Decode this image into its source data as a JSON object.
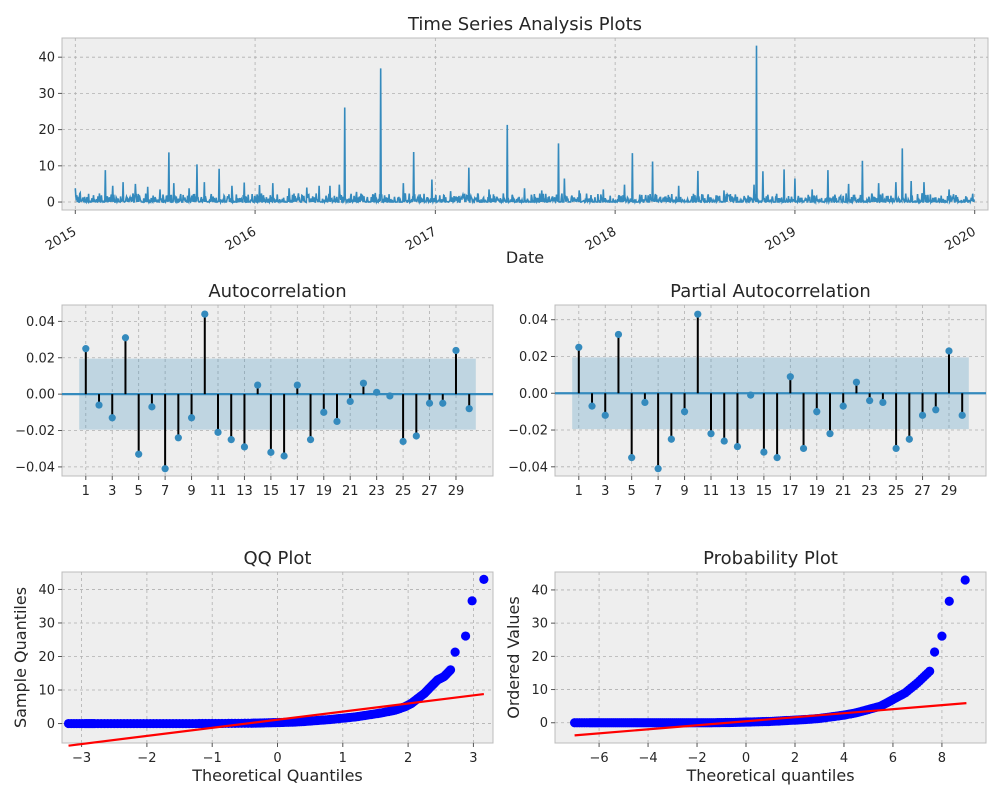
{
  "chart_data": [
    {
      "id": "ts",
      "type": "line",
      "title": "Time Series Analysis Plots",
      "xlabel": "Date",
      "ylabel": "",
      "xlim": [
        "2014-12-05",
        "2020-01-28"
      ],
      "ylim": [
        -2.2,
        45.3
      ],
      "yticks": [
        0,
        10,
        20,
        30,
        40
      ],
      "xticks": [
        {
          "label": "2015",
          "date": "2015-01-01"
        },
        {
          "label": "2016",
          "date": "2016-01-01"
        },
        {
          "label": "2017",
          "date": "2017-01-01"
        },
        {
          "label": "2018",
          "date": "2018-01-01"
        },
        {
          "label": "2019",
          "date": "2019-01-01"
        },
        {
          "label": "2020",
          "date": "2020-01-01"
        }
      ],
      "color": "#348abd",
      "start_date": "2015-01-01",
      "end_date": "2019-12-31",
      "spikes": [
        [
          "2015-01-01",
          3.8
        ],
        [
          "2015-01-11",
          2.5
        ],
        [
          "2015-03-03",
          8.8
        ],
        [
          "2015-03-18",
          4.5
        ],
        [
          "2015-04-08",
          5.5
        ],
        [
          "2015-05-03",
          5.0
        ],
        [
          "2015-05-28",
          4.2
        ],
        [
          "2015-06-22",
          3.5
        ],
        [
          "2015-07-10",
          13.7
        ],
        [
          "2015-07-20",
          5.2
        ],
        [
          "2015-08-20",
          3.8
        ],
        [
          "2015-09-05",
          10.4
        ],
        [
          "2015-09-20",
          5.5
        ],
        [
          "2015-10-20",
          9.2
        ],
        [
          "2015-11-15",
          4.5
        ],
        [
          "2015-12-10",
          5.4
        ],
        [
          "2016-01-10",
          4.7
        ],
        [
          "2016-02-06",
          5.2
        ],
        [
          "2016-03-10",
          3.8
        ],
        [
          "2016-04-15",
          4.0
        ],
        [
          "2016-05-10",
          4.5
        ],
        [
          "2016-06-01",
          4.5
        ],
        [
          "2016-06-20",
          4.8
        ],
        [
          "2016-07-01",
          26.1
        ],
        [
          "2016-07-25",
          2.8
        ],
        [
          "2016-09-01",
          2.5
        ],
        [
          "2016-09-12",
          36.9
        ],
        [
          "2016-10-28",
          5.2
        ],
        [
          "2016-11-18",
          13.8
        ],
        [
          "2016-12-25",
          6.2
        ],
        [
          "2017-02-01",
          3.0
        ],
        [
          "2017-03-10",
          9.5
        ],
        [
          "2017-04-20",
          3.5
        ],
        [
          "2017-05-27",
          21.3
        ],
        [
          "2017-07-01",
          3.8
        ],
        [
          "2017-08-05",
          3.2
        ],
        [
          "2017-09-08",
          16.2
        ],
        [
          "2017-09-20",
          6.5
        ],
        [
          "2017-10-20",
          3.2
        ],
        [
          "2017-12-08",
          3.5
        ],
        [
          "2018-01-20",
          4.8
        ],
        [
          "2018-02-05",
          13.5
        ],
        [
          "2018-03-18",
          11.2
        ],
        [
          "2018-05-10",
          4.5
        ],
        [
          "2018-06-18",
          8.6
        ],
        [
          "2018-08-10",
          3.2
        ],
        [
          "2018-10-10",
          4.8
        ],
        [
          "2018-10-15",
          43.2
        ],
        [
          "2018-10-28",
          8.5
        ],
        [
          "2018-12-10",
          9.0
        ],
        [
          "2019-01-01",
          6.5
        ],
        [
          "2019-02-05",
          3.5
        ],
        [
          "2019-03-09",
          8.8
        ],
        [
          "2019-04-20",
          5.0
        ],
        [
          "2019-05-18",
          11.4
        ],
        [
          "2019-06-20",
          5.2
        ],
        [
          "2019-07-25",
          5.5
        ],
        [
          "2019-08-07",
          14.8
        ],
        [
          "2019-08-25",
          5.8
        ],
        [
          "2019-09-20",
          5.5
        ],
        [
          "2019-11-10",
          3.5
        ],
        [
          "2019-12-28",
          2.3
        ]
      ]
    },
    {
      "id": "acf",
      "type": "stem",
      "title": "Autocorrelation",
      "xlabel": "",
      "ylabel": "",
      "xlim": [
        -0.8,
        31.8
      ],
      "ylim": [
        -0.045,
        0.049
      ],
      "yticks": [
        -0.04,
        -0.02,
        0.0,
        0.02,
        0.04
      ],
      "ytick_labels": [
        "−0.04",
        "−0.02",
        "0.00",
        "0.02",
        "0.04"
      ],
      "xticks": [
        1,
        3,
        5,
        7,
        9,
        11,
        13,
        15,
        17,
        19,
        21,
        23,
        25,
        27,
        29
      ],
      "confidence_band": 0.0195,
      "lags": [
        0,
        1,
        2,
        3,
        4,
        5,
        6,
        7,
        8,
        9,
        10,
        11,
        12,
        13,
        14,
        15,
        16,
        17,
        18,
        19,
        20,
        21,
        22,
        23,
        24,
        25,
        26,
        27,
        28,
        29,
        30
      ],
      "values": [
        0.0,
        0.025,
        -0.006,
        -0.013,
        0.031,
        -0.033,
        -0.007,
        -0.041,
        -0.024,
        -0.013,
        0.044,
        -0.021,
        -0.025,
        -0.029,
        0.005,
        -0.032,
        -0.034,
        0.005,
        -0.025,
        -0.01,
        -0.015,
        -0.004,
        0.006,
        0.001,
        -0.001,
        -0.026,
        -0.023,
        -0.005,
        -0.005,
        0.024,
        -0.008
      ]
    },
    {
      "id": "pacf",
      "type": "stem",
      "title": "Partial Autocorrelation",
      "xlabel": "",
      "ylabel": "",
      "xlim": [
        -0.8,
        31.8
      ],
      "ylim": [
        -0.045,
        0.048
      ],
      "yticks": [
        -0.04,
        -0.02,
        0.0,
        0.02,
        0.04
      ],
      "ytick_labels": [
        "−0.04",
        "−0.02",
        "0.00",
        "0.02",
        "0.04"
      ],
      "xticks": [
        1,
        3,
        5,
        7,
        9,
        11,
        13,
        15,
        17,
        19,
        21,
        23,
        25,
        27,
        29
      ],
      "confidence_band": 0.0195,
      "lags": [
        0,
        1,
        2,
        3,
        4,
        5,
        6,
        7,
        8,
        9,
        10,
        11,
        12,
        13,
        14,
        15,
        16,
        17,
        18,
        19,
        20,
        21,
        22,
        23,
        24,
        25,
        26,
        27,
        28,
        29,
        30
      ],
      "values": [
        0.0,
        0.025,
        -0.007,
        -0.012,
        0.032,
        -0.035,
        -0.005,
        -0.041,
        -0.025,
        -0.01,
        0.043,
        -0.022,
        -0.026,
        -0.029,
        -0.001,
        -0.032,
        -0.035,
        0.009,
        -0.03,
        -0.01,
        -0.022,
        -0.007,
        0.006,
        -0.004,
        -0.005,
        -0.03,
        -0.025,
        -0.012,
        -0.009,
        0.023,
        -0.012
      ]
    },
    {
      "id": "qq",
      "type": "scatter",
      "title": "QQ Plot",
      "xlabel": "Theoretical Quantiles",
      "ylabel": "Sample Quantiles",
      "xlim": [
        -3.3,
        3.3
      ],
      "ylim": [
        -5.8,
        45.2
      ],
      "xticks": [
        -3,
        -2,
        -1,
        0,
        1,
        2,
        3
      ],
      "xtick_labels": [
        "−3",
        "−2",
        "−1",
        "0",
        "1",
        "2",
        "3"
      ],
      "yticks": [
        0,
        10,
        20,
        30,
        40
      ],
      "point_color": "#0000ff",
      "line_color": "#ff0000",
      "fit_line": {
        "x": [
          -3.2,
          3.16
        ],
        "y": [
          -6.6,
          8.8
        ]
      },
      "points": {
        "x": [
          -3.2,
          -2.95,
          -2.8,
          -2.5,
          -2.2,
          -1.9,
          -1.6,
          -1.3,
          -1.0,
          -0.7,
          -0.4,
          -0.2,
          0.0,
          0.2,
          0.4,
          0.6,
          0.8,
          1.0,
          1.2,
          1.4,
          1.6,
          1.8,
          1.95,
          2.05,
          2.15,
          2.25,
          2.35,
          2.45,
          2.55,
          2.65,
          2.72,
          2.88,
          2.98,
          3.16
        ],
        "y": [
          0.0,
          0.0,
          0.0,
          0.0,
          0.0,
          0.0,
          0.0,
          0.0,
          0.02,
          0.05,
          0.1,
          0.2,
          0.3,
          0.4,
          0.6,
          0.9,
          1.2,
          1.6,
          2.0,
          2.6,
          3.2,
          4.0,
          5.0,
          6.0,
          7.5,
          9.0,
          11.0,
          13.0,
          14.0,
          16.0,
          21.3,
          26.1,
          36.6,
          43.0
        ]
      }
    },
    {
      "id": "prob",
      "type": "scatter",
      "title": "Probability Plot",
      "xlabel": "Theoretical quantiles",
      "ylabel": "Ordered Values",
      "xlim": [
        -7.8,
        9.8
      ],
      "ylim": [
        -6.1,
        45.4
      ],
      "xticks": [
        -6,
        -4,
        -2,
        0,
        2,
        4,
        6,
        8
      ],
      "xtick_labels": [
        "−6",
        "−4",
        "−2",
        "0",
        "2",
        "4",
        "6",
        "8"
      ],
      "yticks": [
        0,
        10,
        20,
        30,
        40
      ],
      "point_color": "#0000ff",
      "line_color": "#ff0000",
      "fit_line": {
        "x": [
          -7.0,
          9.0
        ],
        "y": [
          -3.8,
          5.9
        ]
      },
      "points": {
        "x": [
          -7.0,
          -6.4,
          -6.0,
          -5.5,
          -5.0,
          -4.5,
          -4.0,
          -3.5,
          -3.0,
          -2.5,
          -2.0,
          -1.5,
          -1.0,
          -0.5,
          0.0,
          0.5,
          1.0,
          1.5,
          2.0,
          2.5,
          3.0,
          3.5,
          4.0,
          4.5,
          5.0,
          5.5,
          6.0,
          6.5,
          7.0,
          7.5,
          7.7,
          8.0,
          8.3,
          8.95
        ],
        "y": [
          0.0,
          0.0,
          0.0,
          0.0,
          0.0,
          0.0,
          0.0,
          0.0,
          0.0,
          0.0,
          0.0,
          0.0,
          0.05,
          0.1,
          0.2,
          0.3,
          0.4,
          0.6,
          0.8,
          1.0,
          1.3,
          1.8,
          2.3,
          3.0,
          4.0,
          5.0,
          7.0,
          9.0,
          12.0,
          15.5,
          21.3,
          26.1,
          36.6,
          43.0
        ]
      }
    }
  ]
}
